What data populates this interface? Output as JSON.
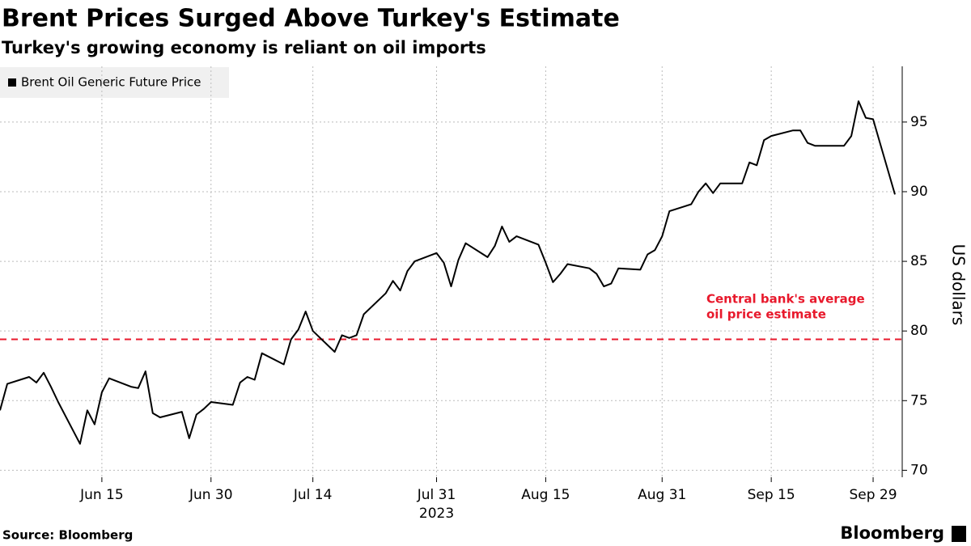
{
  "chart_data": {
    "type": "line",
    "title": "Brent Prices Surged Above Turkey's Estimate",
    "subtitle": "Turkey's growing economy is reliant on oil imports",
    "y_label": "US dollars",
    "x_year_label": "2023",
    "source": "Source: Bloomberg",
    "brand": "Bloomberg",
    "x": [
      "2023-06-01",
      "2023-06-02",
      "2023-06-05",
      "2023-06-06",
      "2023-06-07",
      "2023-06-08",
      "2023-06-09",
      "2023-06-12",
      "2023-06-13",
      "2023-06-14",
      "2023-06-15",
      "2023-06-16",
      "2023-06-19",
      "2023-06-20",
      "2023-06-21",
      "2023-06-22",
      "2023-06-23",
      "2023-06-26",
      "2023-06-27",
      "2023-06-28",
      "2023-06-29",
      "2023-06-30",
      "2023-07-03",
      "2023-07-04",
      "2023-07-05",
      "2023-07-06",
      "2023-07-07",
      "2023-07-10",
      "2023-07-11",
      "2023-07-12",
      "2023-07-13",
      "2023-07-14",
      "2023-07-17",
      "2023-07-18",
      "2023-07-19",
      "2023-07-20",
      "2023-07-21",
      "2023-07-24",
      "2023-07-25",
      "2023-07-26",
      "2023-07-27",
      "2023-07-28",
      "2023-07-31",
      "2023-08-01",
      "2023-08-02",
      "2023-08-03",
      "2023-08-04",
      "2023-08-07",
      "2023-08-08",
      "2023-08-09",
      "2023-08-10",
      "2023-08-11",
      "2023-08-14",
      "2023-08-15",
      "2023-08-16",
      "2023-08-17",
      "2023-08-18",
      "2023-08-21",
      "2023-08-22",
      "2023-08-23",
      "2023-08-24",
      "2023-08-25",
      "2023-08-28",
      "2023-08-29",
      "2023-08-30",
      "2023-08-31",
      "2023-09-01",
      "2023-09-04",
      "2023-09-05",
      "2023-09-06",
      "2023-09-07",
      "2023-09-08",
      "2023-09-11",
      "2023-09-12",
      "2023-09-13",
      "2023-09-14",
      "2023-09-15",
      "2023-09-18",
      "2023-09-19",
      "2023-09-20",
      "2023-09-21",
      "2023-09-22",
      "2023-09-25",
      "2023-09-26",
      "2023-09-27",
      "2023-09-28",
      "2023-09-29",
      "2023-10-02"
    ],
    "series": [
      {
        "name": "Brent Oil Generic Future Price",
        "color": "#000000",
        "values": [
          74.3,
          76.2,
          76.7,
          76.3,
          77.0,
          76.0,
          74.9,
          71.9,
          74.3,
          73.3,
          75.6,
          76.6,
          76.0,
          75.9,
          77.1,
          74.1,
          73.8,
          74.2,
          72.3,
          74.0,
          74.4,
          74.9,
          74.7,
          76.3,
          76.7,
          76.5,
          78.4,
          77.6,
          79.4,
          80.1,
          81.4,
          80.0,
          78.5,
          79.7,
          79.5,
          79.7,
          81.2,
          82.7,
          83.6,
          82.9,
          84.3,
          85.0,
          85.6,
          84.9,
          83.2,
          85.1,
          86.3,
          85.3,
          86.1,
          87.5,
          86.4,
          86.8,
          86.2,
          84.9,
          83.5,
          84.1,
          84.8,
          84.5,
          84.1,
          83.2,
          83.4,
          84.5,
          84.4,
          85.5,
          85.8,
          86.8,
          88.6,
          89.1,
          90.0,
          90.6,
          89.9,
          90.6,
          90.6,
          92.1,
          91.9,
          93.7,
          94.0,
          94.4,
          94.4,
          93.5,
          93.3,
          93.3,
          93.3,
          94.0,
          96.5,
          95.3,
          95.2,
          89.8
        ]
      }
    ],
    "reference_line": {
      "value": 79.4,
      "color": "#e8192c",
      "label": [
        "Central bank's average",
        "oil price estimate"
      ]
    },
    "xlim": [
      "2023-06-01",
      "2023-10-03"
    ],
    "xticks": [
      {
        "value": "2023-06-15",
        "label": "Jun 15"
      },
      {
        "value": "2023-06-30",
        "label": "Jun 30"
      },
      {
        "value": "2023-07-14",
        "label": "Jul 14"
      },
      {
        "value": "2023-07-31",
        "label": "Jul 31"
      },
      {
        "value": "2023-08-15",
        "label": "Aug 15"
      },
      {
        "value": "2023-08-31",
        "label": "Aug 31"
      },
      {
        "value": "2023-09-15",
        "label": "Sep 15"
      },
      {
        "value": "2023-09-29",
        "label": "Sep 29"
      }
    ],
    "ylim": [
      69.5,
      99
    ],
    "yticks": [
      70,
      75,
      80,
      85,
      90,
      95
    ],
    "grid": true
  }
}
